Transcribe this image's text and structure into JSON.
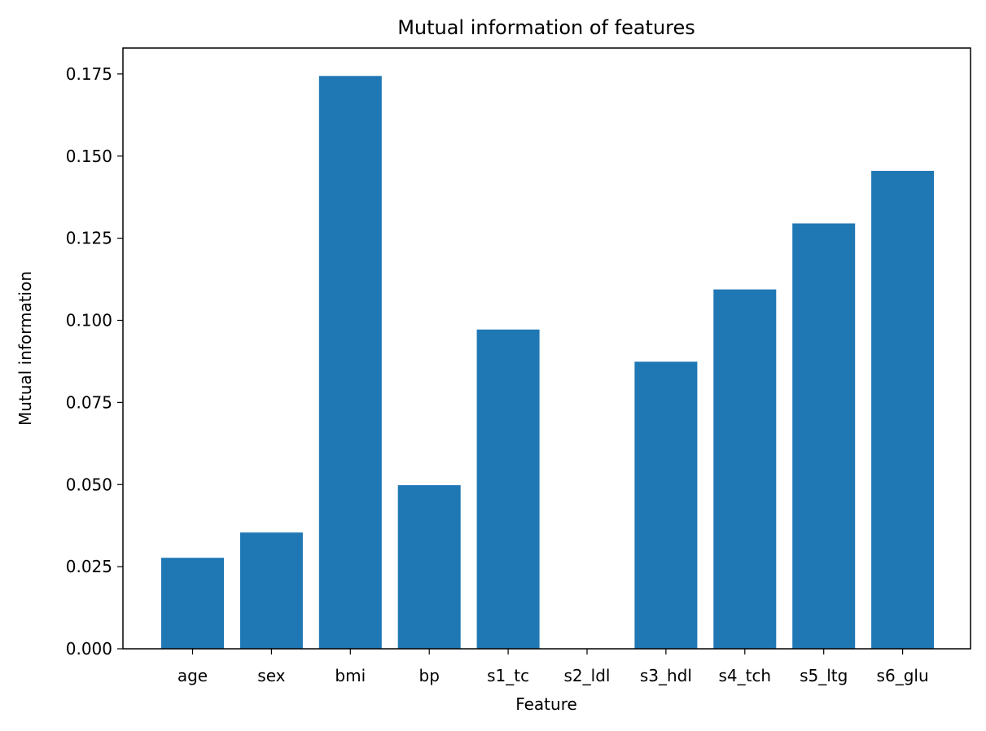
{
  "chart_data": {
    "type": "bar",
    "title": "Mutual information of features",
    "xlabel": "Feature",
    "ylabel": "Mutual information",
    "categories": [
      "age",
      "sex",
      "bmi",
      "bp",
      "s1_tc",
      "s2_ldl",
      "s3_hdl",
      "s4_tch",
      "s5_ltg",
      "s6_glu"
    ],
    "values": [
      0.0277,
      0.0354,
      0.1744,
      0.0498,
      0.0972,
      0.0,
      0.0874,
      0.1094,
      0.1295,
      0.1455
    ],
    "ylim": [
      0,
      0.1829
    ],
    "yticks": [
      "0.000",
      "0.025",
      "0.050",
      "0.075",
      "0.100",
      "0.125",
      "0.150",
      "0.175"
    ],
    "grid": false,
    "bar_color": "#1f77b4"
  }
}
